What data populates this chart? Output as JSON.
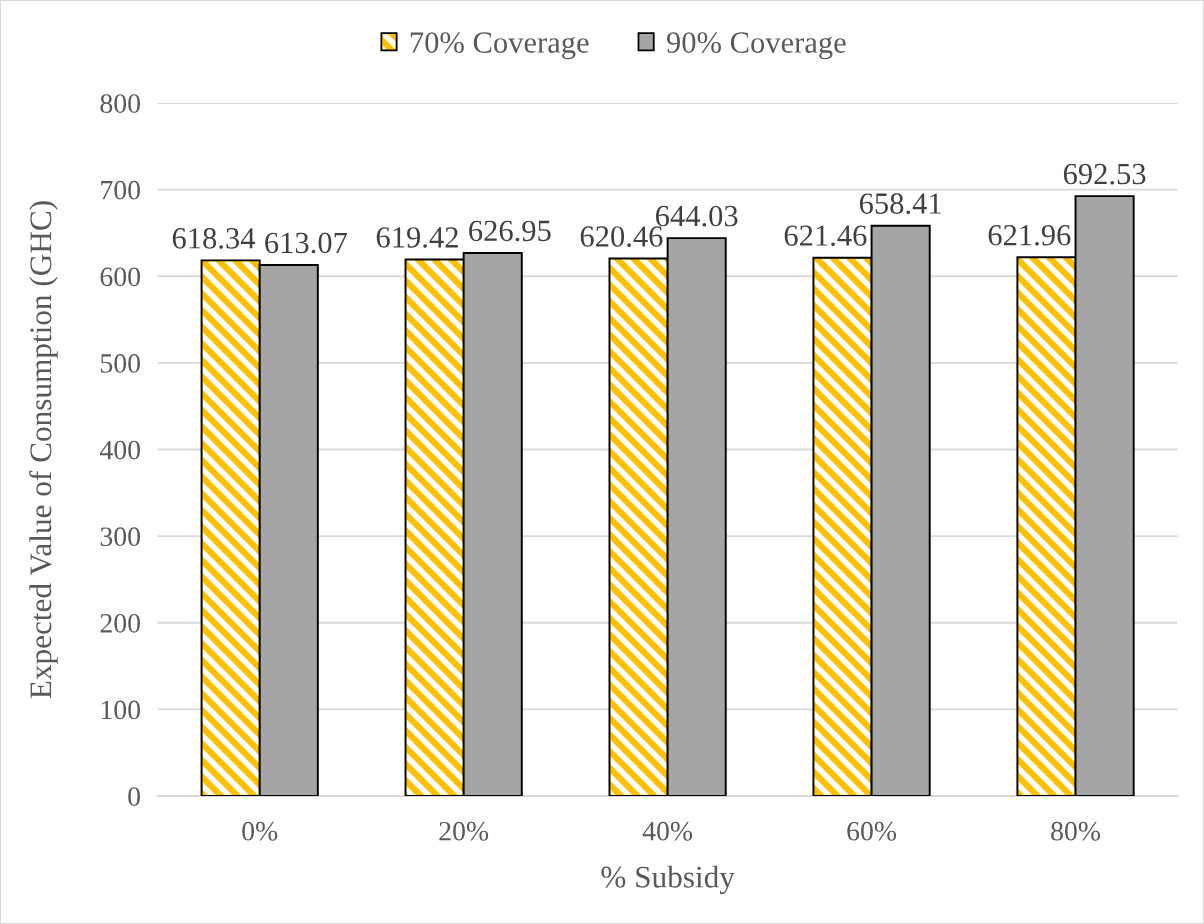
{
  "chart_data": {
    "type": "bar",
    "categories": [
      "0%",
      "20%",
      "40%",
      "60%",
      "80%"
    ],
    "xlabel": "% Subsidy",
    "ylabel": "Expected Value of Consumption (GHC)",
    "series": [
      {
        "name": "70% Coverage",
        "color": "#ffc000",
        "values": [
          618.34,
          619.42,
          620.46,
          621.46,
          621.96
        ]
      },
      {
        "name": "90% Coverage",
        "color": "#a5a5a5",
        "values": [
          613.07,
          626.95,
          644.03,
          658.41,
          692.53
        ]
      }
    ],
    "ylim": [
      0,
      800
    ],
    "yticks": [
      0,
      100,
      200,
      300,
      400,
      500,
      600,
      700,
      800
    ],
    "grid": "y",
    "legend": "top",
    "data_labels": true
  }
}
